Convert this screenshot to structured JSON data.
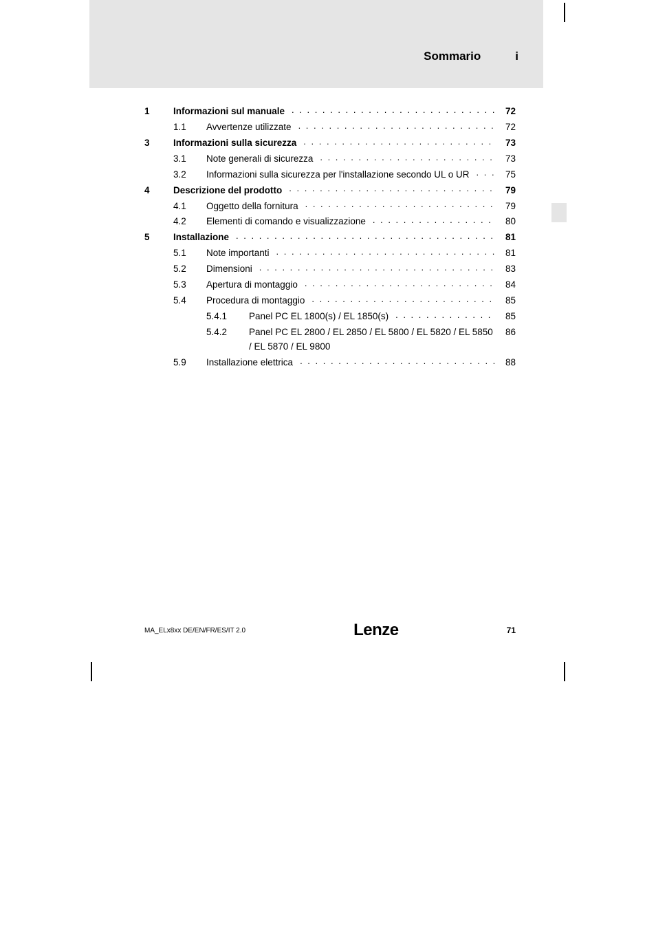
{
  "header": {
    "title": "Sommario",
    "label": "i"
  },
  "toc": [
    {
      "level": 0,
      "ch": "1",
      "title": "Informazioni sul manuale",
      "page": "72",
      "bold": true
    },
    {
      "level": 1,
      "sec": "1.1",
      "title": "Avvertenze utilizzate",
      "page": "72"
    },
    {
      "level": 0,
      "ch": "3",
      "title": "Informazioni sulla sicurezza",
      "page": "73",
      "bold": true
    },
    {
      "level": 1,
      "sec": "3.1",
      "title": "Note generali di sicurezza",
      "page": "73"
    },
    {
      "level": 1,
      "sec": "3.2",
      "title": "Informazioni sulla sicurezza per l'installazione secondo UL o UR",
      "page": "75"
    },
    {
      "level": 0,
      "ch": "4",
      "title": "Descrizione del prodotto",
      "page": "79",
      "bold": true
    },
    {
      "level": 1,
      "sec": "4.1",
      "title": "Oggetto della fornitura",
      "page": "79"
    },
    {
      "level": 1,
      "sec": "4.2",
      "title": "Elementi di comando e visualizzazione",
      "page": "80"
    },
    {
      "level": 0,
      "ch": "5",
      "title": "Installazione",
      "page": "81",
      "bold": true
    },
    {
      "level": 1,
      "sec": "5.1",
      "title": "Note importanti",
      "page": "81"
    },
    {
      "level": 1,
      "sec": "5.2",
      "title": "Dimensioni",
      "page": "83"
    },
    {
      "level": 1,
      "sec": "5.3",
      "title": "Apertura di montaggio",
      "page": "84"
    },
    {
      "level": 1,
      "sec": "5.4",
      "title": "Procedura di montaggio",
      "page": "85"
    },
    {
      "level": 2,
      "sub": "5.4.1",
      "title": "Panel PC EL 1800(s) / EL 1850(s)",
      "page": "85"
    },
    {
      "level": 2,
      "sub": "5.4.2",
      "title": "Panel PC EL 2800 / EL 2850 / EL 5800 / EL 5820 / EL 5850 / EL 5870 / EL 9800",
      "page": "86"
    },
    {
      "level": 1,
      "sec": "5.9",
      "title": "Installazione elettrica",
      "page": "88"
    }
  ],
  "footer": {
    "doc": "MA_ELx8xx   DE/EN/FR/ES/IT   2.0",
    "logo": "Lenze",
    "page": "71"
  },
  "colors": {
    "band": "#e5e5e5",
    "text": "#000000",
    "bg": "#ffffff"
  }
}
